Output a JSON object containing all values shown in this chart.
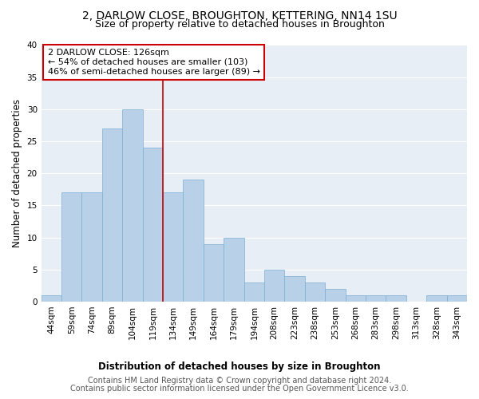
{
  "title1": "2, DARLOW CLOSE, BROUGHTON, KETTERING, NN14 1SU",
  "title2": "Size of property relative to detached houses in Broughton",
  "xlabel": "Distribution of detached houses by size in Broughton",
  "ylabel": "Number of detached properties",
  "categories": [
    "44sqm",
    "59sqm",
    "74sqm",
    "89sqm",
    "104sqm",
    "119sqm",
    "134sqm",
    "149sqm",
    "164sqm",
    "179sqm",
    "194sqm",
    "208sqm",
    "223sqm",
    "238sqm",
    "253sqm",
    "268sqm",
    "283sqm",
    "298sqm",
    "313sqm",
    "328sqm",
    "343sqm"
  ],
  "values": [
    1,
    17,
    17,
    27,
    30,
    24,
    17,
    19,
    9,
    10,
    3,
    5,
    4,
    3,
    2,
    1,
    1,
    1,
    0,
    1,
    1
  ],
  "bar_color": "#b8d0e8",
  "bar_edge_color": "#7aafd4",
  "background_color": "#e8eef6",
  "grid_color": "#ffffff",
  "vline_x": 5.5,
  "vline_color": "#cc0000",
  "annotation_text": "2 DARLOW CLOSE: 126sqm\n← 54% of detached houses are smaller (103)\n46% of semi-detached houses are larger (89) →",
  "annotation_box_color": "#ffffff",
  "annotation_box_edge_color": "#cc0000",
  "ylim": [
    0,
    40
  ],
  "yticks": [
    0,
    5,
    10,
    15,
    20,
    25,
    30,
    35,
    40
  ],
  "footer1": "Contains HM Land Registry data © Crown copyright and database right 2024.",
  "footer2": "Contains public sector information licensed under the Open Government Licence v3.0.",
  "title1_fontsize": 10,
  "title2_fontsize": 9,
  "axis_label_fontsize": 8.5,
  "tick_fontsize": 7.5,
  "annotation_fontsize": 8,
  "footer_fontsize": 7
}
